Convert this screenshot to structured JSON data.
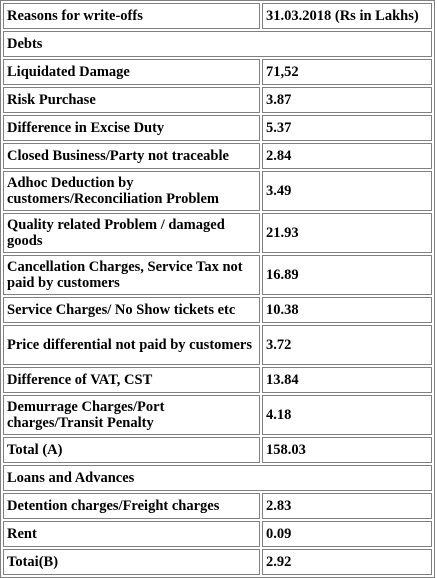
{
  "header": {
    "reasons": "Reasons for write-offs",
    "date": "31.03.2018 (Rs in Lakhs)"
  },
  "sections": {
    "debts": "Debts",
    "loans": "Loans and Advances"
  },
  "debts_rows": [
    {
      "label": "Liquidated Damage",
      "value": "71,52"
    },
    {
      "label": "Risk Purchase",
      "value": "3.87"
    },
    {
      "label": "Difference in Excise Duty",
      "value": "5.37"
    },
    {
      "label": "Closed Business/Party not traceable",
      "value": "2.84"
    },
    {
      "label": "Adhoc Deduction by customers/Reconciliation Problem",
      "value": "3.49"
    },
    {
      "label": "Quality related Problem / damaged goods",
      "value": "21.93"
    },
    {
      "label": "Cancellation Charges, Service Tax not paid by customers",
      "value": "16.89"
    },
    {
      "label": "Service Charges/ No Show tickets etc",
      "value": "10.38"
    },
    {
      "label": "Price differential not paid by customers",
      "value": "3.72"
    },
    {
      "label": "Difference of VAT, CST",
      "value": "13.84"
    },
    {
      "label": "Demurrage Charges/Port charges/Transit Penalty",
      "value": "4.18"
    },
    {
      "label": "Total (A)",
      "value": "158.03"
    }
  ],
  "loans_rows": [
    {
      "label": "Detention charges/Freight charges",
      "value": "2.83"
    },
    {
      "label": "Rent",
      "value": "0.09"
    },
    {
      "label": "Totai(B)",
      "value": "2.92"
    }
  ]
}
